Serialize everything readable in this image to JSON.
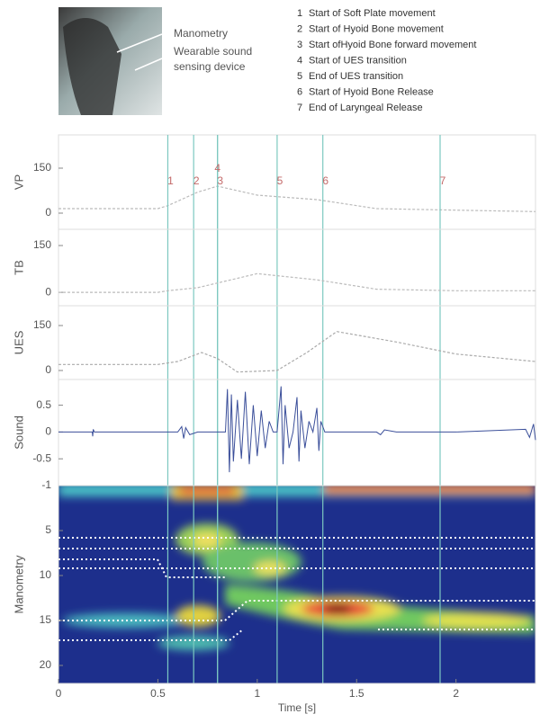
{
  "photo": {
    "labels": [
      "Manometry",
      "Wearable sound",
      "sensing device"
    ]
  },
  "legend": {
    "items": [
      {
        "number": "1",
        "text": "Start of Soft Plate movement"
      },
      {
        "number": "2",
        "text": "Start of Hyoid Bone movement"
      },
      {
        "number": "3",
        "text": "Start ofHyoid Bone forward movement"
      },
      {
        "number": "4",
        "text": "Start of UES transition"
      },
      {
        "number": "5",
        "text": "End of UES transition"
      },
      {
        "number": "6",
        "text": "Start of Hyoid Bone Release"
      },
      {
        "number": "7",
        "text": "End of Laryngeal Release"
      }
    ]
  },
  "chart_data": [
    {
      "type": "line",
      "ylabel": "VP",
      "color": "#bbbbbb",
      "xlim": [
        0,
        2.4
      ],
      "ylim": [
        -54,
        261
      ],
      "yticks": [
        0,
        150
      ],
      "x": [
        0,
        0.5,
        0.55,
        0.7,
        0.8,
        1.0,
        1.3,
        1.6,
        2.0,
        2.4
      ],
      "values": [
        15,
        15,
        25,
        70,
        90,
        60,
        45,
        15,
        10,
        5
      ],
      "event_color": "#7cc8c0",
      "event_label_color": "#c46a6a",
      "events": [
        {
          "label": "1",
          "x": 0.55
        },
        {
          "label": "2",
          "x": 0.68
        },
        {
          "label": "3",
          "x": 0.8
        },
        {
          "label": "4",
          "x": 0.8
        },
        {
          "label": "5",
          "x": 1.1
        },
        {
          "label": "6",
          "x": 1.33
        },
        {
          "label": "7",
          "x": 1.92
        }
      ]
    },
    {
      "type": "line",
      "ylabel": "TB",
      "color": "#bbbbbb",
      "xlim": [
        0,
        2.4
      ],
      "ylim": [
        -43,
        202
      ],
      "yticks": [
        0,
        150
      ],
      "x": [
        0,
        0.5,
        0.55,
        0.7,
        0.8,
        1.0,
        1.3,
        1.6,
        2.0,
        2.4
      ],
      "values": [
        0,
        0,
        5,
        15,
        30,
        60,
        40,
        10,
        5,
        5
      ]
    },
    {
      "type": "line",
      "ylabel": "UES",
      "color": "#aaaaaa",
      "xlim": [
        0,
        2.4
      ],
      "ylim": [
        -30,
        216
      ],
      "yticks": [
        0,
        150
      ],
      "x": [
        0,
        0.5,
        0.6,
        0.72,
        0.8,
        0.9,
        1.1,
        1.25,
        1.4,
        1.7,
        2.0,
        2.4
      ],
      "values": [
        20,
        20,
        30,
        60,
        40,
        -5,
        0,
        60,
        130,
        95,
        55,
        30
      ]
    },
    {
      "type": "line",
      "ylabel": "Sound",
      "color": "#3b4f9a",
      "xlim": [
        0,
        2.4
      ],
      "ylim": [
        -1,
        0.98
      ],
      "yticks": [
        -1,
        -0.5,
        0,
        0.5
      ],
      "x": [
        0,
        0.17,
        0.172,
        0.175,
        0.18,
        0.6,
        0.62,
        0.63,
        0.64,
        0.66,
        0.7,
        0.84,
        0.85,
        0.86,
        0.87,
        0.88,
        0.9,
        0.92,
        0.94,
        0.96,
        0.98,
        1.0,
        1.02,
        1.04,
        1.06,
        1.08,
        1.1,
        1.12,
        1.13,
        1.14,
        1.16,
        1.18,
        1.2,
        1.21,
        1.22,
        1.24,
        1.26,
        1.28,
        1.3,
        1.31,
        1.32,
        1.34,
        1.6,
        1.62,
        1.64,
        1.7,
        2.0,
        2.35,
        2.37,
        2.39,
        2.4
      ],
      "values": [
        0,
        0,
        -0.08,
        0.05,
        0,
        0,
        0.1,
        -0.12,
        0.08,
        -0.05,
        0,
        0,
        0.8,
        -0.75,
        0.7,
        -0.55,
        0.6,
        -0.5,
        0.75,
        -0.6,
        0.5,
        -0.45,
        0.4,
        -0.3,
        0.2,
        0,
        0,
        0.85,
        -0.6,
        0.5,
        -0.3,
        0,
        0.65,
        -0.55,
        0.4,
        -0.3,
        0.2,
        0,
        0.45,
        -0.35,
        0.2,
        0,
        0,
        -0.05,
        0.04,
        0,
        0,
        0.05,
        -0.1,
        0.15,
        -0.15
      ]
    },
    {
      "type": "heatmap",
      "ylabel": "Manometry",
      "xlabel": "Time [s]",
      "xlim": [
        0,
        2.4
      ],
      "ylim": [
        22,
        0
      ],
      "yticks": [
        5,
        10,
        15,
        20
      ],
      "xticks": [
        0,
        0.5,
        1,
        1.5,
        2
      ]
    }
  ]
}
